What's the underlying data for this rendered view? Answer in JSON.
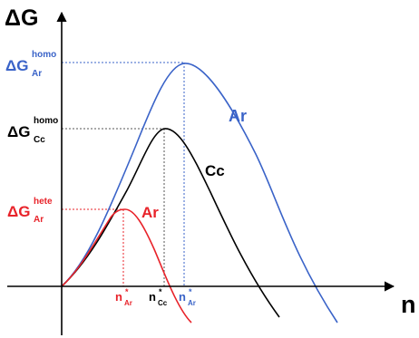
{
  "axes": {
    "y_label": "ΔG",
    "x_label": "n"
  },
  "colors": {
    "ar": "#3a63c8",
    "cc": "#000000",
    "ar_hete": "#e8232a",
    "axis": "#000000",
    "guide": "#888888"
  },
  "y_levels": {
    "ar_homo": {
      "base": "ΔG",
      "sub": "Ar",
      "sup": "homo"
    },
    "cc_homo": {
      "base": "ΔG",
      "sub": "Cc",
      "sup": "homo"
    },
    "ar_hete": {
      "base": "ΔG",
      "sub": "Ar",
      "sup": "hete"
    }
  },
  "x_marks": {
    "ar_hete": {
      "base": "n",
      "sub": "Ar",
      "sup": "*"
    },
    "cc": {
      "base": "n",
      "sub": "Cc",
      "sup": "*"
    },
    "ar_homo": {
      "base": "n",
      "sub": "Ar",
      "sup": "*"
    }
  },
  "curve_labels": {
    "ar_homo": "Ar",
    "cc_homo": "Cc",
    "ar_hete": "Ar"
  }
}
